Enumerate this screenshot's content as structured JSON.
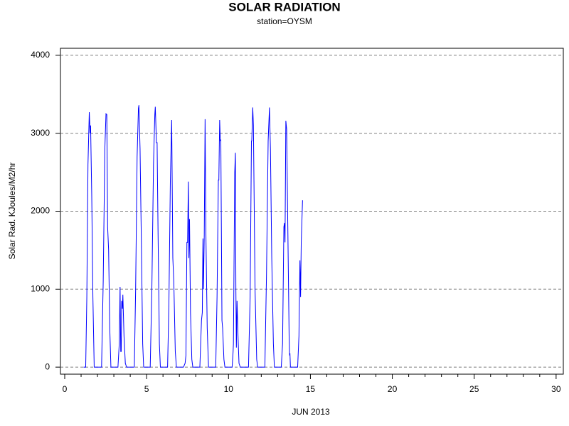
{
  "chart_data": {
    "type": "line",
    "title": "SOLAR RADIATION",
    "subtitle": "station=OYSM",
    "x_label": "JUN 2013",
    "y_label": "Solar Rad. KJoules/M2/hr",
    "xlim": [
      -0.26,
      30.44
    ],
    "ylim": [
      -90,
      4090
    ],
    "xticks": [
      0,
      5,
      10,
      15,
      20,
      25,
      30
    ],
    "xminorticks": [
      1,
      2,
      3,
      4,
      6,
      7,
      8,
      9,
      11,
      12,
      13,
      14,
      16,
      17,
      18,
      19,
      21,
      22,
      23,
      24,
      26,
      27,
      28,
      29
    ],
    "yticks": [
      0,
      1000,
      2000,
      3000,
      4000
    ],
    "grid": true,
    "series": [
      {
        "color": "#0000ff",
        "x": [
          1.15,
          1.28,
          1.35,
          1.42,
          1.5,
          1.55,
          1.58,
          1.65,
          1.72,
          1.8,
          2.25,
          2.35,
          2.45,
          2.52,
          2.57,
          2.62,
          2.68,
          2.75,
          2.82,
          3.25,
          3.33,
          3.38,
          3.42,
          3.45,
          3.48,
          3.52,
          3.55,
          3.62,
          3.7,
          3.78,
          4.25,
          4.33,
          4.42,
          4.5,
          4.53,
          4.6,
          4.68,
          4.76,
          4.82,
          5.22,
          5.32,
          5.42,
          5.5,
          5.53,
          5.6,
          5.64,
          5.7,
          5.78,
          5.84,
          6.28,
          6.36,
          6.45,
          6.53,
          6.6,
          6.66,
          6.75,
          6.82,
          7.25,
          7.35,
          7.4,
          7.46,
          7.5,
          7.55,
          7.58,
          7.62,
          7.68,
          7.76,
          7.82,
          8.25,
          8.35,
          8.4,
          8.44,
          8.47,
          8.52,
          8.57,
          8.62,
          8.7,
          8.78,
          9.22,
          9.3,
          9.38,
          9.41,
          9.46,
          9.5,
          9.53,
          9.6,
          9.64,
          9.72,
          9.78,
          10.22,
          10.28,
          10.3,
          10.38,
          10.42,
          10.45,
          10.48,
          10.52,
          10.58,
          10.64,
          10.72,
          11.22,
          11.32,
          11.4,
          11.42,
          11.48,
          11.52,
          11.56,
          11.62,
          11.72,
          11.78,
          12.22,
          12.32,
          12.42,
          12.5,
          12.56,
          12.64,
          12.74,
          12.8,
          13.22,
          13.3,
          13.38,
          13.42,
          13.45,
          13.5,
          13.55,
          13.62,
          13.7,
          13.73,
          13.75,
          13.78,
          14.22,
          14.3,
          14.36,
          14.4,
          14.44,
          14.52
        ],
        "values": [
          0,
          0,
          900,
          2600,
          3270,
          3000,
          3100,
          2200,
          900,
          0,
          0,
          1100,
          2800,
          3250,
          3240,
          1800,
          1500,
          500,
          0,
          0,
          300,
          1030,
          200,
          200,
          850,
          750,
          930,
          400,
          50,
          0,
          0,
          1000,
          2700,
          3320,
          3360,
          2800,
          1600,
          300,
          0,
          0,
          1000,
          2600,
          3240,
          3340,
          2880,
          2880,
          1700,
          300,
          0,
          0,
          800,
          2400,
          3170,
          1400,
          1100,
          200,
          0,
          0,
          50,
          150,
          1600,
          1600,
          2380,
          1400,
          1900,
          700,
          100,
          0,
          0,
          600,
          700,
          1650,
          1000,
          1700,
          3180,
          1700,
          500,
          0,
          0,
          900,
          2400,
          2400,
          3170,
          2900,
          2920,
          600,
          500,
          100,
          0,
          0,
          200,
          300,
          2500,
          2750,
          1000,
          250,
          850,
          400,
          50,
          0,
          0,
          900,
          2900,
          2900,
          3330,
          3100,
          2250,
          1000,
          100,
          0,
          0,
          1200,
          2900,
          3330,
          2800,
          1400,
          300,
          0,
          0,
          300,
          1800,
          1850,
          1600,
          3160,
          3050,
          1800,
          400,
          150,
          180,
          0,
          0,
          400,
          1370,
          900,
          1600,
          2140
        ]
      }
    ]
  }
}
